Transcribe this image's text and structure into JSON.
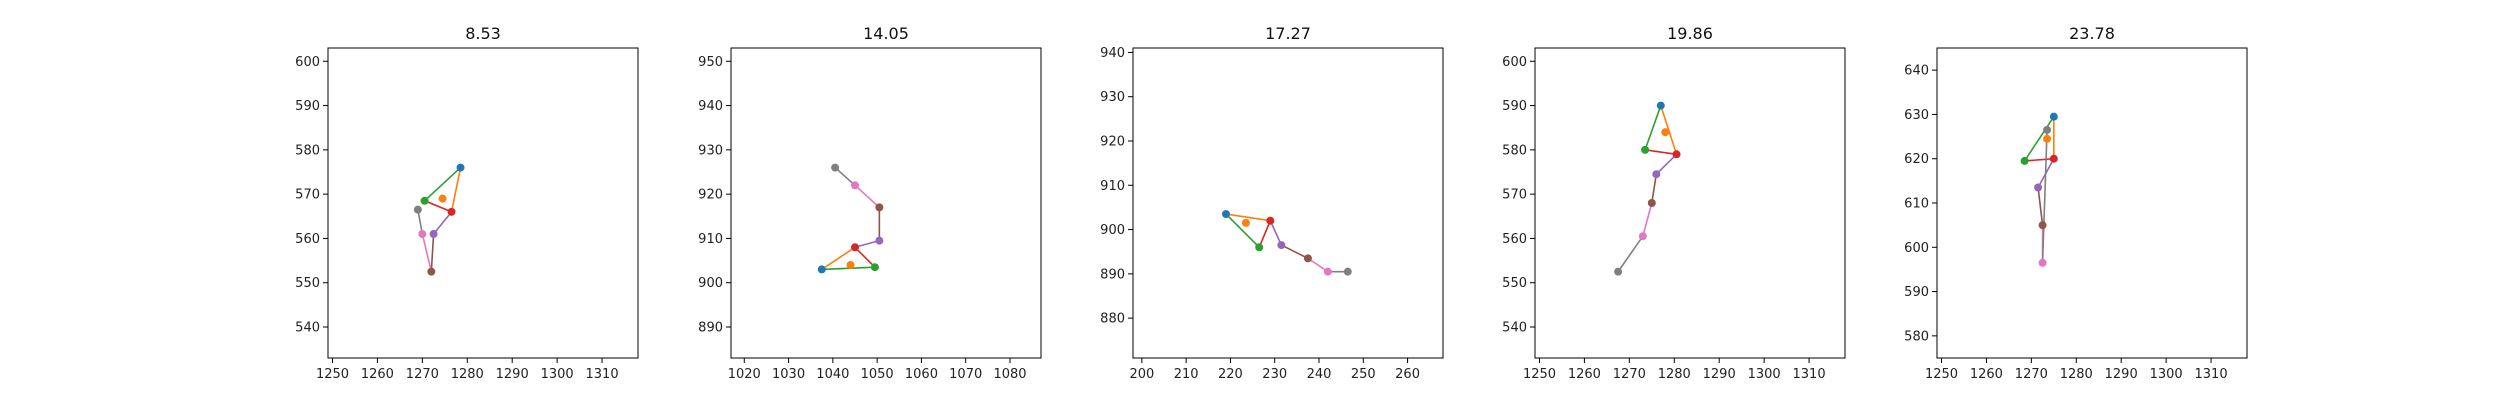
{
  "chart_data": [
    {
      "type": "line",
      "title": "8.53",
      "xlim": [
        1249,
        1318
      ],
      "ylim": [
        533,
        603
      ],
      "xticks": [
        1250,
        1260,
        1270,
        1280,
        1290,
        1300,
        1310
      ],
      "yticks": [
        540,
        550,
        560,
        570,
        580,
        590,
        600
      ],
      "points": [
        {
          "x": 1278.5,
          "y": 576.0,
          "color": "#1f77b4"
        },
        {
          "x": 1274.5,
          "y": 569.0,
          "color": "#ff7f0e"
        },
        {
          "x": 1270.5,
          "y": 568.5,
          "color": "#2ca02c"
        },
        {
          "x": 1276.5,
          "y": 566.0,
          "color": "#d62728"
        },
        {
          "x": 1272.5,
          "y": 561.0,
          "color": "#9467bd"
        },
        {
          "x": 1272.0,
          "y": 552.5,
          "color": "#8c564b"
        },
        {
          "x": 1270.0,
          "y": 561.0,
          "color": "#e377c2"
        },
        {
          "x": 1269.0,
          "y": 566.5,
          "color": "#7f7f7f"
        }
      ],
      "segments": [
        {
          "from": 0,
          "to": 3,
          "color": "#ff7f0e"
        },
        {
          "from": 0,
          "to": 2,
          "color": "#2ca02c"
        },
        {
          "from": 2,
          "to": 3,
          "color": "#d62728"
        },
        {
          "from": 3,
          "to": 4,
          "color": "#9467bd"
        },
        {
          "from": 4,
          "to": 5,
          "color": "#8c564b"
        },
        {
          "from": 5,
          "to": 6,
          "color": "#e377c2"
        },
        {
          "from": 6,
          "to": 7,
          "color": "#7f7f7f"
        }
      ]
    },
    {
      "type": "line",
      "title": "14.05",
      "xlim": [
        1017,
        1087
      ],
      "ylim": [
        883,
        953
      ],
      "xticks": [
        1020,
        1030,
        1040,
        1050,
        1060,
        1070,
        1080
      ],
      "yticks": [
        890,
        900,
        910,
        920,
        930,
        940,
        950
      ],
      "points": [
        {
          "x": 1037.5,
          "y": 903.0,
          "color": "#1f77b4"
        },
        {
          "x": 1044.0,
          "y": 904.0,
          "color": "#ff7f0e"
        },
        {
          "x": 1049.5,
          "y": 903.5,
          "color": "#2ca02c"
        },
        {
          "x": 1045.0,
          "y": 908.0,
          "color": "#d62728"
        },
        {
          "x": 1050.5,
          "y": 909.5,
          "color": "#9467bd"
        },
        {
          "x": 1050.5,
          "y": 917.0,
          "color": "#8c564b"
        },
        {
          "x": 1045.0,
          "y": 922.0,
          "color": "#e377c2"
        },
        {
          "x": 1040.5,
          "y": 926.0,
          "color": "#7f7f7f"
        }
      ],
      "segments": [
        {
          "from": 0,
          "to": 3,
          "color": "#ff7f0e"
        },
        {
          "from": 0,
          "to": 2,
          "color": "#2ca02c"
        },
        {
          "from": 2,
          "to": 3,
          "color": "#d62728"
        },
        {
          "from": 3,
          "to": 4,
          "color": "#9467bd"
        },
        {
          "from": 4,
          "to": 5,
          "color": "#8c564b"
        },
        {
          "from": 5,
          "to": 6,
          "color": "#e377c2"
        },
        {
          "from": 6,
          "to": 7,
          "color": "#7f7f7f"
        }
      ]
    },
    {
      "type": "line",
      "title": "17.27",
      "xlim": [
        198,
        268
      ],
      "ylim": [
        871,
        941
      ],
      "xticks": [
        200,
        210,
        220,
        230,
        240,
        250,
        260
      ],
      "yticks": [
        880,
        890,
        900,
        910,
        920,
        930,
        940
      ],
      "points": [
        {
          "x": 219.0,
          "y": 903.5,
          "color": "#1f77b4"
        },
        {
          "x": 223.5,
          "y": 901.5,
          "color": "#ff7f0e"
        },
        {
          "x": 226.5,
          "y": 896.0,
          "color": "#2ca02c"
        },
        {
          "x": 229.0,
          "y": 902.0,
          "color": "#d62728"
        },
        {
          "x": 231.5,
          "y": 896.5,
          "color": "#9467bd"
        },
        {
          "x": 237.5,
          "y": 893.5,
          "color": "#8c564b"
        },
        {
          "x": 242.0,
          "y": 890.5,
          "color": "#e377c2"
        },
        {
          "x": 246.5,
          "y": 890.5,
          "color": "#7f7f7f"
        }
      ],
      "segments": [
        {
          "from": 0,
          "to": 3,
          "color": "#ff7f0e"
        },
        {
          "from": 0,
          "to": 2,
          "color": "#2ca02c"
        },
        {
          "from": 2,
          "to": 3,
          "color": "#d62728"
        },
        {
          "from": 3,
          "to": 4,
          "color": "#9467bd"
        },
        {
          "from": 4,
          "to": 5,
          "color": "#8c564b"
        },
        {
          "from": 5,
          "to": 6,
          "color": "#e377c2"
        },
        {
          "from": 6,
          "to": 7,
          "color": "#7f7f7f"
        }
      ]
    },
    {
      "type": "line",
      "title": "19.86",
      "xlim": [
        1249,
        1318
      ],
      "ylim": [
        533,
        603
      ],
      "xticks": [
        1250,
        1260,
        1270,
        1280,
        1290,
        1300,
        1310
      ],
      "yticks": [
        540,
        550,
        560,
        570,
        580,
        590,
        600
      ],
      "points": [
        {
          "x": 1277.0,
          "y": 590.0,
          "color": "#1f77b4"
        },
        {
          "x": 1278.0,
          "y": 584.0,
          "color": "#ff7f0e"
        },
        {
          "x": 1273.5,
          "y": 580.0,
          "color": "#2ca02c"
        },
        {
          "x": 1280.5,
          "y": 579.0,
          "color": "#d62728"
        },
        {
          "x": 1276.0,
          "y": 574.5,
          "color": "#9467bd"
        },
        {
          "x": 1275.0,
          "y": 568.0,
          "color": "#8c564b"
        },
        {
          "x": 1273.0,
          "y": 560.5,
          "color": "#e377c2"
        },
        {
          "x": 1267.5,
          "y": 552.5,
          "color": "#7f7f7f"
        }
      ],
      "segments": [
        {
          "from": 0,
          "to": 3,
          "color": "#ff7f0e"
        },
        {
          "from": 0,
          "to": 2,
          "color": "#2ca02c"
        },
        {
          "from": 2,
          "to": 3,
          "color": "#d62728"
        },
        {
          "from": 3,
          "to": 4,
          "color": "#9467bd"
        },
        {
          "from": 4,
          "to": 5,
          "color": "#8c564b"
        },
        {
          "from": 5,
          "to": 6,
          "color": "#e377c2"
        },
        {
          "from": 6,
          "to": 7,
          "color": "#7f7f7f"
        }
      ]
    },
    {
      "type": "line",
      "title": "23.78",
      "xlim": [
        1249,
        1318
      ],
      "ylim": [
        575,
        645
      ],
      "xticks": [
        1250,
        1260,
        1270,
        1280,
        1290,
        1300,
        1310
      ],
      "yticks": [
        580,
        590,
        600,
        610,
        620,
        630,
        640
      ],
      "points": [
        {
          "x": 1275.0,
          "y": 629.5,
          "color": "#1f77b4"
        },
        {
          "x": 1273.5,
          "y": 624.5,
          "color": "#ff7f0e"
        },
        {
          "x": 1268.5,
          "y": 619.5,
          "color": "#2ca02c"
        },
        {
          "x": 1275.0,
          "y": 620.0,
          "color": "#d62728"
        },
        {
          "x": 1271.5,
          "y": 613.5,
          "color": "#9467bd"
        },
        {
          "x": 1272.5,
          "y": 605.0,
          "color": "#8c564b"
        },
        {
          "x": 1272.5,
          "y": 596.5,
          "color": "#e377c2"
        },
        {
          "x": 1273.5,
          "y": 626.5,
          "color": "#7f7f7f"
        }
      ],
      "segments": [
        {
          "from": 0,
          "to": 3,
          "color": "#ff7f0e"
        },
        {
          "from": 0,
          "to": 2,
          "color": "#2ca02c"
        },
        {
          "from": 2,
          "to": 3,
          "color": "#d62728"
        },
        {
          "from": 3,
          "to": 4,
          "color": "#9467bd"
        },
        {
          "from": 4,
          "to": 5,
          "color": "#8c564b"
        },
        {
          "from": 5,
          "to": 6,
          "color": "#e377c2"
        },
        {
          "from": 6,
          "to": 7,
          "color": "#7f7f7f"
        }
      ]
    }
  ]
}
